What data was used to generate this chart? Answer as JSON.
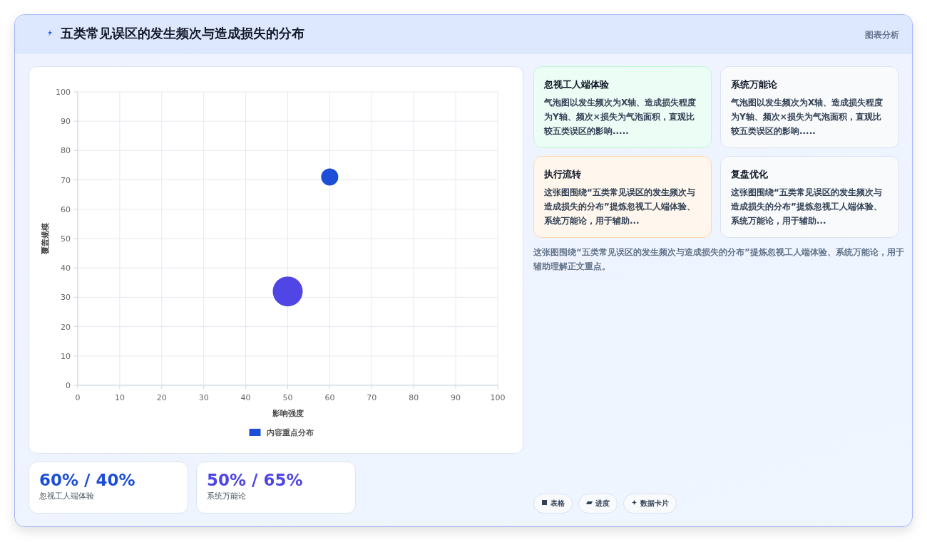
{
  "chart_data": [
    {
      "type": "bubble",
      "title": "五类常见误区的发生频次与造成损失的分布",
      "annotations": [
        "图表分析"
      ],
      "xlabel": "影响强度",
      "ylabel": "覆盖规模",
      "xlim": [
        0,
        100
      ],
      "ylim": [
        0,
        100
      ],
      "xticks": [
        0,
        10,
        20,
        30,
        40,
        50,
        60,
        70,
        80,
        90,
        100
      ],
      "yticks": [
        0,
        10,
        20,
        30,
        40,
        50,
        60,
        70,
        80,
        90,
        100
      ],
      "grid": true,
      "legend": "bottom",
      "series": [
        {
          "name": "内容重点分布",
          "color": "#1d4ed8",
          "colors": [
            "#1d4ed8",
            "#4f46e5"
          ],
          "x": [
            60,
            50
          ],
          "values": [
            71,
            32
          ],
          "sizes": [
            0.33,
            1
          ]
        }
      ]
    },
    {
      "type": "other",
      "title": "忽视工人端体验",
      "annotations": [
        "气泡图以发生频次为X轴、造成损失程度为Y轴、频次×损失为气泡面积，直观比较五类误区的影响....."
      ]
    },
    {
      "type": "other",
      "title": "系统万能论",
      "annotations": [
        "气泡图以发生频次为X轴、造成损失程度为Y轴、频次×损失为气泡面积，直观比较五类误区的影响....."
      ]
    },
    {
      "type": "other",
      "title": "执行流转",
      "annotations": [
        "这张图围绕“五类常见误区的发生频次与造成损失的分布”提炼忽视工人端体验、系统万能论，用于辅助..."
      ]
    },
    {
      "type": "other",
      "title": "复盘优化",
      "annotations": [
        "这张图围绕“五类常见误区的发生频次与造成损失的分布”提炼忽视工人端体验、系统万能论，用于辅助..."
      ]
    },
    {
      "type": "other",
      "annotations": [
        "这张图围绕“五类常见误区的发生频次与造成损失的分布”提炼忽视工人端体验、系统万能论，用于辅助理解正文重点。"
      ]
    },
    {
      "type": "other",
      "title": "60% / 40%",
      "annotations": [
        "忽视工人端体验"
      ]
    },
    {
      "type": "other",
      "title": "50% / 65%",
      "annotations": [
        "系统万能论"
      ]
    },
    {
      "type": "other",
      "annotations": [
        "表格",
        "进度",
        "数据卡片"
      ]
    }
  ]
}
